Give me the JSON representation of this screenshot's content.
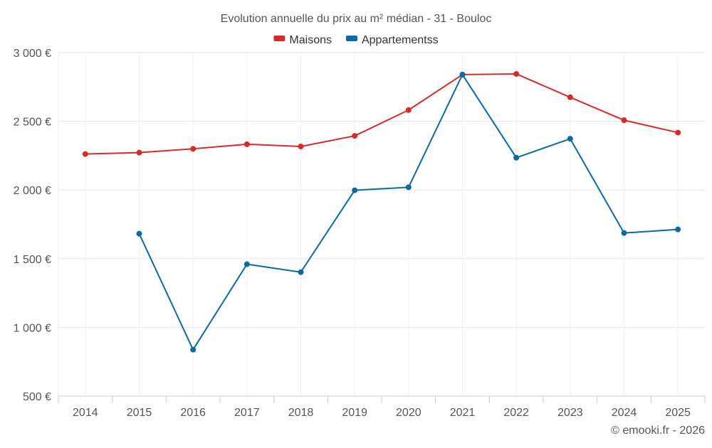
{
  "chart_data": {
    "type": "line",
    "title": "Evolution annuelle du prix au m² médian - 31 - Bouloc",
    "xlabel": "",
    "ylabel": "",
    "categories": [
      "2014",
      "2015",
      "2016",
      "2017",
      "2018",
      "2019",
      "2020",
      "2021",
      "2022",
      "2023",
      "2024",
      "2025"
    ],
    "ylim": [
      500,
      3000
    ],
    "yticks": [
      500,
      1000,
      1500,
      2000,
      2500,
      3000
    ],
    "ytick_labels": [
      "500 €",
      "1 000 €",
      "1 500 €",
      "2 000 €",
      "2 500 €",
      "3 000 €"
    ],
    "grid": true,
    "legend_position": "top-center",
    "series": [
      {
        "name": "Maisons",
        "color": "#d62b2b",
        "values": [
          2262,
          2272,
          2300,
          2333,
          2317,
          2394,
          2582,
          2840,
          2845,
          2675,
          2508,
          2418
        ]
      },
      {
        "name": "Appartementss",
        "color": "#0a6aa1",
        "values": [
          null,
          1682,
          838,
          1460,
          1402,
          1998,
          2020,
          2840,
          2235,
          2373,
          1687,
          1713
        ]
      }
    ]
  },
  "credit": "© emooki.fr - 2026"
}
